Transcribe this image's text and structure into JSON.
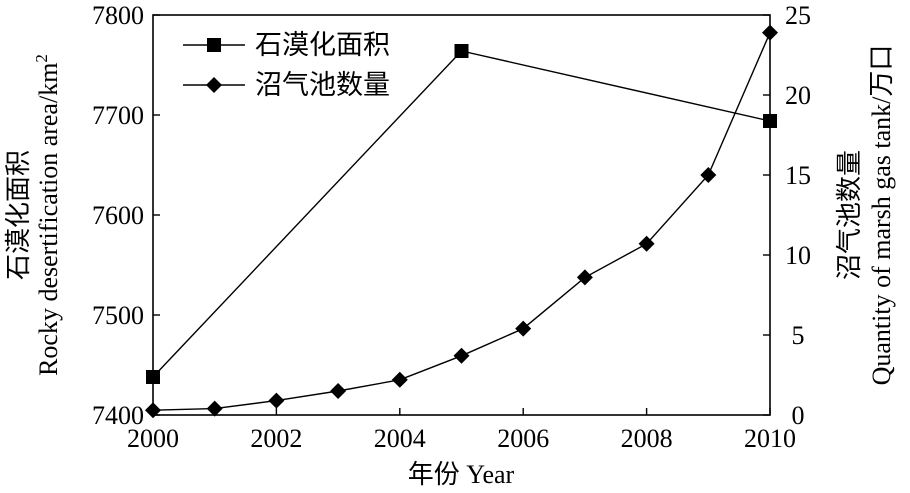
{
  "chart_data": {
    "type": "line",
    "xlabel": "年份 Year",
    "ylabel_left_cn": "石漠化面积",
    "ylabel_left_en": "Rocky desertification area/km",
    "ylabel_left_sup": "2",
    "ylabel_right_cn": "沼气池数量",
    "ylabel_right_en": "Quantity of marsh gas tank/万口",
    "xlim": [
      2000,
      2010
    ],
    "ylim_left": [
      7400,
      7800
    ],
    "ylim_right": [
      0,
      25
    ],
    "x_ticks": [
      "2000",
      "2002",
      "2004",
      "2006",
      "2008",
      "2010"
    ],
    "y_left_ticks": [
      "7400",
      "7500",
      "7600",
      "7700",
      "7800"
    ],
    "y_right_ticks": [
      "0",
      "5",
      "10",
      "15",
      "20",
      "25"
    ],
    "legend_position": "top-left",
    "series": [
      {
        "name": "石漠化面积",
        "axis": "left",
        "marker": "square",
        "x": [
          2000,
          2005,
          2010
        ],
        "values": [
          7438,
          7764,
          7694
        ]
      },
      {
        "name": "沼气池数量",
        "axis": "right",
        "marker": "diamond",
        "x": [
          2000,
          2001,
          2002,
          2003,
          2004,
          2005,
          2006,
          2007,
          2008,
          2009,
          2010
        ],
        "values": [
          0.3,
          0.4,
          0.9,
          1.5,
          2.2,
          3.7,
          5.4,
          8.6,
          10.7,
          15.0,
          23.9
        ]
      }
    ]
  }
}
